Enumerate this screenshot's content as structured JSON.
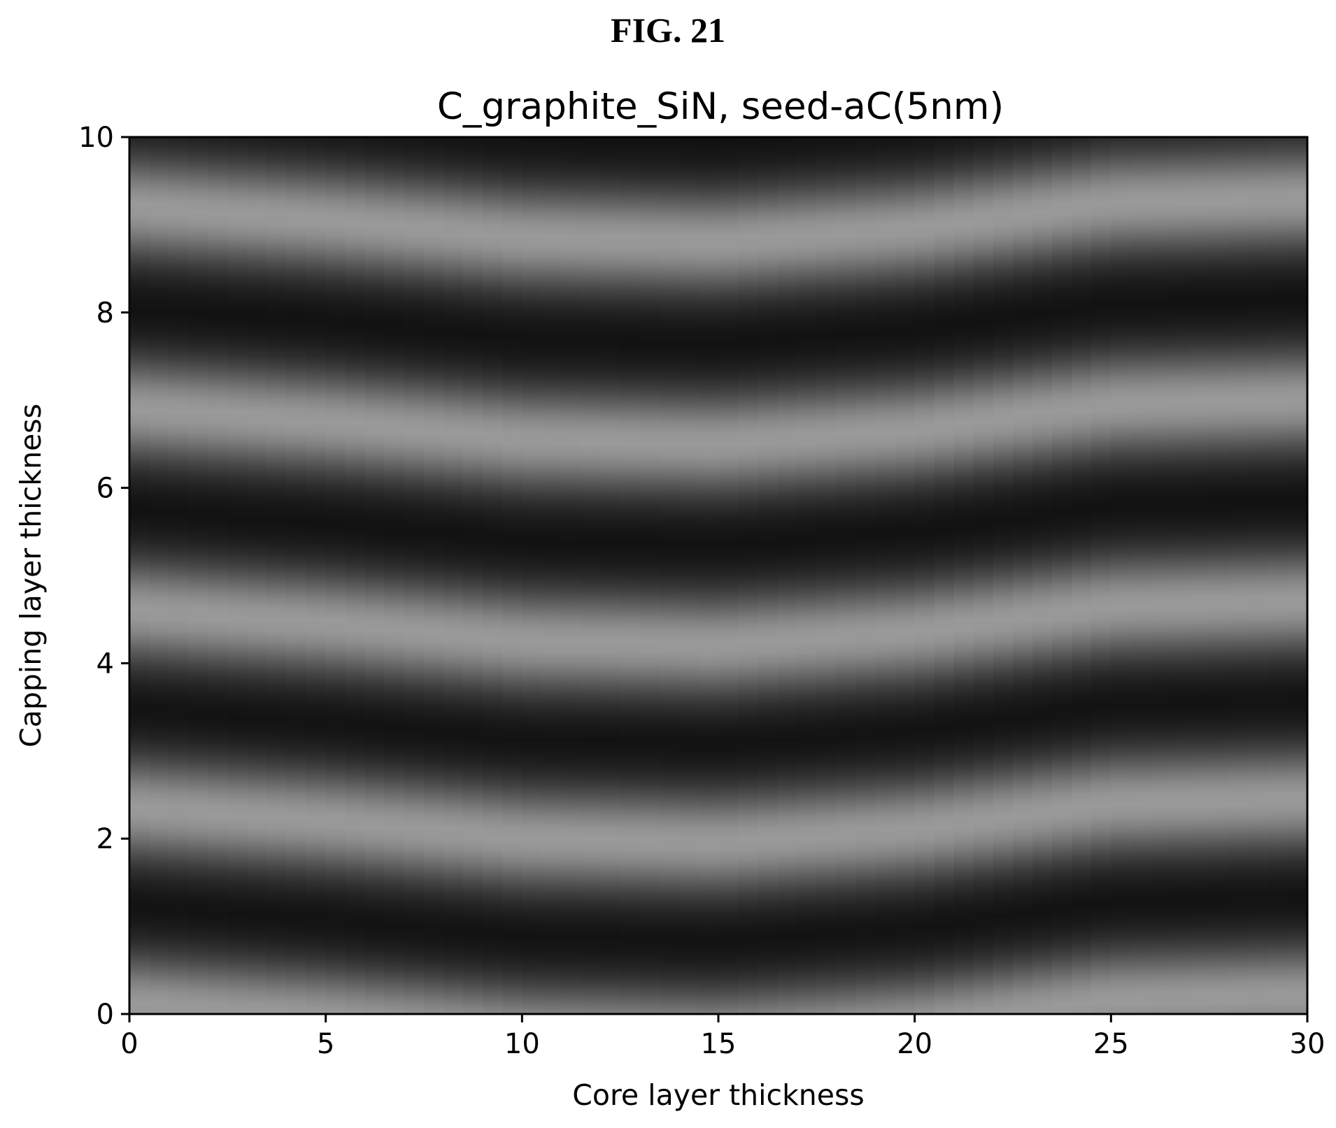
{
  "figure_label": "FIG. 21",
  "chart_data": {
    "type": "heatmap",
    "title": "C_graphite_SiN, seed-aC(5nm)",
    "xlabel": "Core layer thickness",
    "ylabel": "Capping layer thickness",
    "xlim": [
      0,
      30
    ],
    "ylim": [
      0,
      10
    ],
    "xticks": [
      "0",
      "5",
      "10",
      "15",
      "20",
      "25",
      "30"
    ],
    "yticks": [
      "0",
      "2",
      "4",
      "6",
      "8",
      "10"
    ],
    "colormap": "grayscale",
    "intensity_profile": {
      "description_axis": "capping layer thickness",
      "bright_band_centers_y": [
        0.1,
        2.35,
        4.6,
        6.9,
        9.2
      ],
      "dark_band_centers_y": [
        1.2,
        3.4,
        5.7,
        8.0
      ],
      "band_shift_with_core": [
        {
          "x": 0,
          "dy": 0.0
        },
        {
          "x": 5,
          "dy": -0.15
        },
        {
          "x": 10,
          "dy": -0.35
        },
        {
          "x": 15,
          "dy": -0.4
        },
        {
          "x": 20,
          "dy": -0.25
        },
        {
          "x": 25,
          "dy": 0.05
        },
        {
          "x": 30,
          "dy": 0.1
        }
      ]
    },
    "grid": false,
    "legend": "none"
  }
}
